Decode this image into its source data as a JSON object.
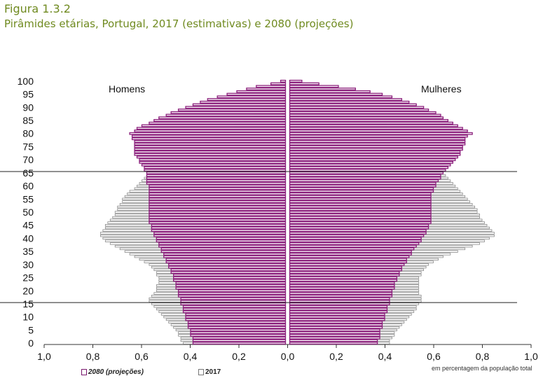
{
  "header": {
    "figure_label": "Figura 1.3.2",
    "title": "Pirâmides etárias, Portugal, 2017 (estimativas) e 2080 (projeções)"
  },
  "legend": {
    "projection_label": "2080 (projeções)",
    "estimate_label": "2017"
  },
  "note": "em percentagem da população total",
  "colors": {
    "projection_fill": "#8b1f7c",
    "estimate_fill": "#8a8a8a",
    "title_color": "#6f8a1f"
  },
  "chart_data": {
    "type": "bar",
    "orientation": "horizontal",
    "title": "Pirâmides etárias, Portugal, 2017 (estimativas) e 2080 (projeções)",
    "xlabel": "em percentagem da população total",
    "ylabel": "",
    "xlim": [
      -1.0,
      1.0
    ],
    "ylim": [
      0,
      100
    ],
    "x_ticks": [
      "1,0",
      "0,8",
      "0,6",
      "0,4",
      "0,2",
      "0,0",
      "0,2",
      "0,4",
      "0,6",
      "0,8",
      "1,0"
    ],
    "y_ticks": [
      "0",
      "5",
      "10",
      "15",
      "20",
      "25",
      "30",
      "35",
      "40",
      "45",
      "50",
      "55",
      "60",
      "65",
      "70",
      "75",
      "80",
      "85",
      "90",
      "95",
      "100"
    ],
    "side_labels": {
      "left": "Homens",
      "right": "Mulheres"
    },
    "reference_lines_age": [
      15,
      65
    ],
    "ages": [
      0,
      1,
      2,
      3,
      4,
      5,
      6,
      7,
      8,
      9,
      10,
      11,
      12,
      13,
      14,
      15,
      16,
      17,
      18,
      19,
      20,
      21,
      22,
      23,
      24,
      25,
      26,
      27,
      28,
      29,
      30,
      31,
      32,
      33,
      34,
      35,
      36,
      37,
      38,
      39,
      40,
      41,
      42,
      43,
      44,
      45,
      46,
      47,
      48,
      49,
      50,
      51,
      52,
      53,
      54,
      55,
      56,
      57,
      58,
      59,
      60,
      61,
      62,
      63,
      64,
      65,
      66,
      67,
      68,
      69,
      70,
      71,
      72,
      73,
      74,
      75,
      76,
      77,
      78,
      79,
      80,
      81,
      82,
      83,
      84,
      85,
      86,
      87,
      88,
      89,
      90,
      91,
      92,
      93,
      94,
      95,
      96,
      97,
      98,
      99,
      100
    ],
    "series": [
      {
        "name": "2017",
        "values_men": [
          0.42,
          0.43,
          0.43,
          0.44,
          0.44,
          0.45,
          0.46,
          0.47,
          0.48,
          0.49,
          0.5,
          0.51,
          0.52,
          0.53,
          0.54,
          0.55,
          0.56,
          0.56,
          0.55,
          0.54,
          0.53,
          0.53,
          0.53,
          0.52,
          0.52,
          0.52,
          0.53,
          0.53,
          0.54,
          0.55,
          0.56,
          0.58,
          0.6,
          0.62,
          0.64,
          0.66,
          0.68,
          0.7,
          0.72,
          0.74,
          0.75,
          0.76,
          0.76,
          0.75,
          0.74,
          0.74,
          0.73,
          0.72,
          0.71,
          0.7,
          0.7,
          0.69,
          0.69,
          0.68,
          0.67,
          0.67,
          0.66,
          0.65,
          0.64,
          0.62,
          0.61,
          0.6,
          0.59,
          0.58,
          0.56,
          0.55,
          0.54,
          0.52,
          0.51,
          0.49,
          0.47,
          0.45,
          0.43,
          0.41,
          0.39,
          0.37,
          0.35,
          0.33,
          0.31,
          0.29,
          0.27,
          0.25,
          0.23,
          0.21,
          0.19,
          0.17,
          0.15,
          0.13,
          0.11,
          0.09,
          0.07,
          0.06,
          0.04,
          0.03,
          0.02,
          0.015,
          0.01,
          0.007,
          0.004,
          0.002,
          0.001
        ],
        "values_women": [
          0.41,
          0.41,
          0.42,
          0.43,
          0.43,
          0.44,
          0.45,
          0.46,
          0.47,
          0.48,
          0.49,
          0.5,
          0.51,
          0.52,
          0.52,
          0.53,
          0.54,
          0.54,
          0.54,
          0.53,
          0.53,
          0.53,
          0.53,
          0.53,
          0.53,
          0.53,
          0.54,
          0.54,
          0.55,
          0.56,
          0.57,
          0.59,
          0.61,
          0.63,
          0.66,
          0.69,
          0.72,
          0.75,
          0.78,
          0.8,
          0.82,
          0.84,
          0.84,
          0.83,
          0.82,
          0.81,
          0.8,
          0.79,
          0.78,
          0.78,
          0.77,
          0.77,
          0.76,
          0.75,
          0.74,
          0.73,
          0.72,
          0.71,
          0.7,
          0.69,
          0.68,
          0.67,
          0.66,
          0.65,
          0.64,
          0.63,
          0.62,
          0.61,
          0.6,
          0.59,
          0.58,
          0.57,
          0.56,
          0.55,
          0.53,
          0.51,
          0.5,
          0.49,
          0.48,
          0.48,
          0.47,
          0.45,
          0.43,
          0.4,
          0.37,
          0.33,
          0.3,
          0.26,
          0.22,
          0.19,
          0.16,
          0.12,
          0.1,
          0.08,
          0.06,
          0.04,
          0.03,
          0.02,
          0.012,
          0.006,
          0.003
        ]
      },
      {
        "name": "2080 (projeções)",
        "values_men": [
          0.38,
          0.38,
          0.38,
          0.39,
          0.39,
          0.39,
          0.4,
          0.4,
          0.4,
          0.41,
          0.41,
          0.41,
          0.42,
          0.42,
          0.42,
          0.43,
          0.43,
          0.43,
          0.44,
          0.44,
          0.44,
          0.45,
          0.45,
          0.45,
          0.46,
          0.46,
          0.46,
          0.47,
          0.47,
          0.48,
          0.48,
          0.49,
          0.49,
          0.5,
          0.5,
          0.51,
          0.51,
          0.52,
          0.52,
          0.53,
          0.53,
          0.54,
          0.54,
          0.55,
          0.55,
          0.55,
          0.56,
          0.56,
          0.56,
          0.56,
          0.56,
          0.56,
          0.56,
          0.56,
          0.56,
          0.56,
          0.56,
          0.56,
          0.56,
          0.56,
          0.56,
          0.57,
          0.57,
          0.57,
          0.57,
          0.57,
          0.58,
          0.58,
          0.59,
          0.6,
          0.6,
          0.61,
          0.62,
          0.62,
          0.62,
          0.62,
          0.62,
          0.62,
          0.63,
          0.63,
          0.64,
          0.62,
          0.61,
          0.59,
          0.56,
          0.54,
          0.52,
          0.49,
          0.47,
          0.44,
          0.41,
          0.38,
          0.35,
          0.32,
          0.28,
          0.24,
          0.2,
          0.16,
          0.12,
          0.06,
          0.02
        ],
        "values_women": [
          0.36,
          0.36,
          0.37,
          0.37,
          0.37,
          0.37,
          0.38,
          0.38,
          0.38,
          0.39,
          0.39,
          0.39,
          0.4,
          0.4,
          0.4,
          0.41,
          0.41,
          0.41,
          0.42,
          0.42,
          0.42,
          0.43,
          0.43,
          0.43,
          0.44,
          0.44,
          0.45,
          0.45,
          0.46,
          0.46,
          0.47,
          0.48,
          0.48,
          0.49,
          0.5,
          0.5,
          0.51,
          0.52,
          0.53,
          0.54,
          0.54,
          0.55,
          0.56,
          0.56,
          0.57,
          0.57,
          0.58,
          0.58,
          0.58,
          0.58,
          0.58,
          0.58,
          0.58,
          0.58,
          0.58,
          0.58,
          0.58,
          0.58,
          0.59,
          0.59,
          0.6,
          0.6,
          0.61,
          0.62,
          0.62,
          0.63,
          0.64,
          0.65,
          0.66,
          0.67,
          0.68,
          0.69,
          0.7,
          0.7,
          0.71,
          0.71,
          0.72,
          0.72,
          0.72,
          0.73,
          0.75,
          0.73,
          0.71,
          0.69,
          0.67,
          0.65,
          0.63,
          0.62,
          0.6,
          0.57,
          0.55,
          0.52,
          0.49,
          0.46,
          0.42,
          0.38,
          0.33,
          0.27,
          0.2,
          0.12,
          0.05
        ]
      }
    ]
  }
}
